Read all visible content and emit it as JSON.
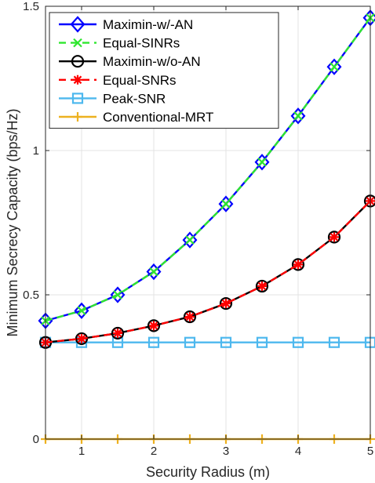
{
  "chart_data": {
    "type": "line",
    "title": "",
    "xlabel": "Security Radius (m)",
    "ylabel": "Minimum Secrecy Capacity (bps/Hz)",
    "xlim": [
      0.5,
      5
    ],
    "ylim": [
      0,
      1.5
    ],
    "xticks": [
      "1",
      "2",
      "3",
      "4",
      "5"
    ],
    "yticks": [
      "0",
      "0.5",
      "1",
      "1.5"
    ],
    "grid": true,
    "legend_position": "top-left",
    "x": [
      0.5,
      1.0,
      1.5,
      2.0,
      2.5,
      3.0,
      3.5,
      4.0,
      4.5,
      5.0
    ],
    "series": [
      {
        "name": "Maximin-w/-AN",
        "color": "#0000ff",
        "marker": "diamond",
        "dash": "solid",
        "values": [
          0.41,
          0.445,
          0.5,
          0.58,
          0.69,
          0.815,
          0.96,
          1.12,
          1.29,
          1.46
        ]
      },
      {
        "name": "Equal-SINRs",
        "color": "#2ee62e",
        "marker": "x",
        "dash": "dashed",
        "values": [
          0.41,
          0.445,
          0.5,
          0.58,
          0.69,
          0.815,
          0.96,
          1.12,
          1.29,
          1.46
        ]
      },
      {
        "name": "Maximin-w/o-AN",
        "color": "#000000",
        "marker": "circle",
        "dash": "solid",
        "values": [
          0.335,
          0.348,
          0.367,
          0.393,
          0.424,
          0.47,
          0.53,
          0.605,
          0.7,
          0.825
        ]
      },
      {
        "name": "Equal-SNRs",
        "color": "#ff0000",
        "marker": "asterisk",
        "dash": "dashed",
        "values": [
          0.335,
          0.348,
          0.367,
          0.393,
          0.424,
          0.47,
          0.53,
          0.605,
          0.7,
          0.825
        ]
      },
      {
        "name": "Peak-SNR",
        "color": "#4db8ee",
        "marker": "square",
        "dash": "solid",
        "values": [
          0.335,
          0.335,
          0.335,
          0.335,
          0.335,
          0.335,
          0.335,
          0.335,
          0.335,
          0.335
        ]
      },
      {
        "name": "Conventional-MRT",
        "color": "#edb120",
        "marker": "plus",
        "dash": "solid",
        "values": [
          0,
          0,
          0,
          0,
          0,
          0,
          0,
          0,
          0,
          0
        ]
      }
    ]
  }
}
